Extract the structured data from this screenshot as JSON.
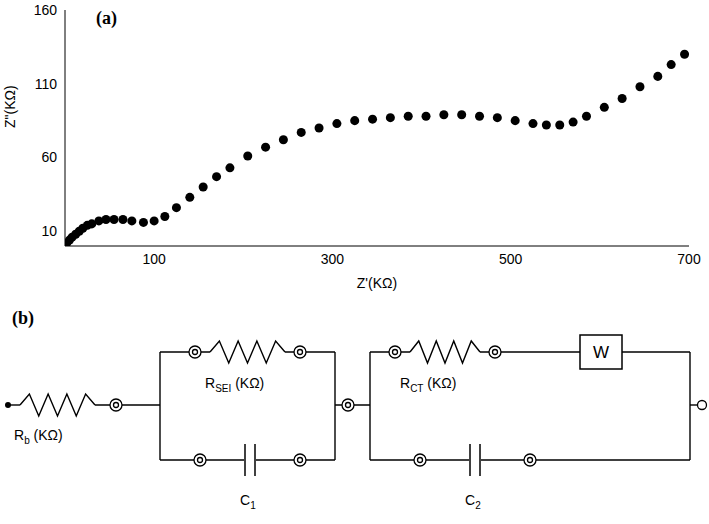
{
  "chart_data": {
    "type": "scatter",
    "title": "(a)",
    "x_label": "Z'(KΩ)",
    "y_label": "Z\"(KΩ)",
    "x": [
      2,
      5,
      8,
      12,
      16,
      20,
      25,
      30,
      38,
      46,
      55,
      65,
      75,
      88,
      100,
      112,
      125,
      140,
      155,
      170,
      185,
      205,
      225,
      245,
      265,
      285,
      305,
      325,
      345,
      365,
      385,
      405,
      425,
      445,
      465,
      485,
      505,
      525,
      540,
      555,
      570,
      585,
      605,
      625,
      645,
      665,
      680,
      695
    ],
    "values": [
      2,
      4,
      6,
      8,
      10,
      12,
      14,
      15,
      17,
      18,
      18,
      18,
      17,
      16,
      17,
      20,
      26,
      33,
      40,
      47,
      53,
      61,
      67,
      72,
      77,
      80,
      83,
      85,
      86,
      87,
      88,
      88,
      89,
      89,
      88,
      87,
      85,
      83,
      82,
      82,
      84,
      88,
      94,
      100,
      108,
      115,
      123,
      130
    ],
    "xlim": [
      0,
      700
    ],
    "xticks": [
      100,
      300,
      500,
      700
    ],
    "ylim": [
      0,
      160
    ],
    "yticks": [
      10,
      60,
      110,
      160
    ],
    "color": "#000000",
    "marker": "circle",
    "grid": false
  },
  "diagram": {
    "label": "(b)",
    "components": {
      "rb": {
        "symbol": "R",
        "subscript": "b",
        "unit": " (KΩ)"
      },
      "rsei": {
        "symbol": "R",
        "subscript": "SEI",
        "unit": " (KΩ)"
      },
      "c1": {
        "symbol": "C",
        "subscript": "1",
        "unit": ""
      },
      "rct": {
        "symbol": "R",
        "subscript": "CT",
        "unit": " (KΩ)"
      },
      "w": {
        "symbol": "W",
        "subscript": "",
        "unit": ""
      },
      "c2": {
        "symbol": "C",
        "subscript": "2",
        "unit": ""
      }
    }
  }
}
